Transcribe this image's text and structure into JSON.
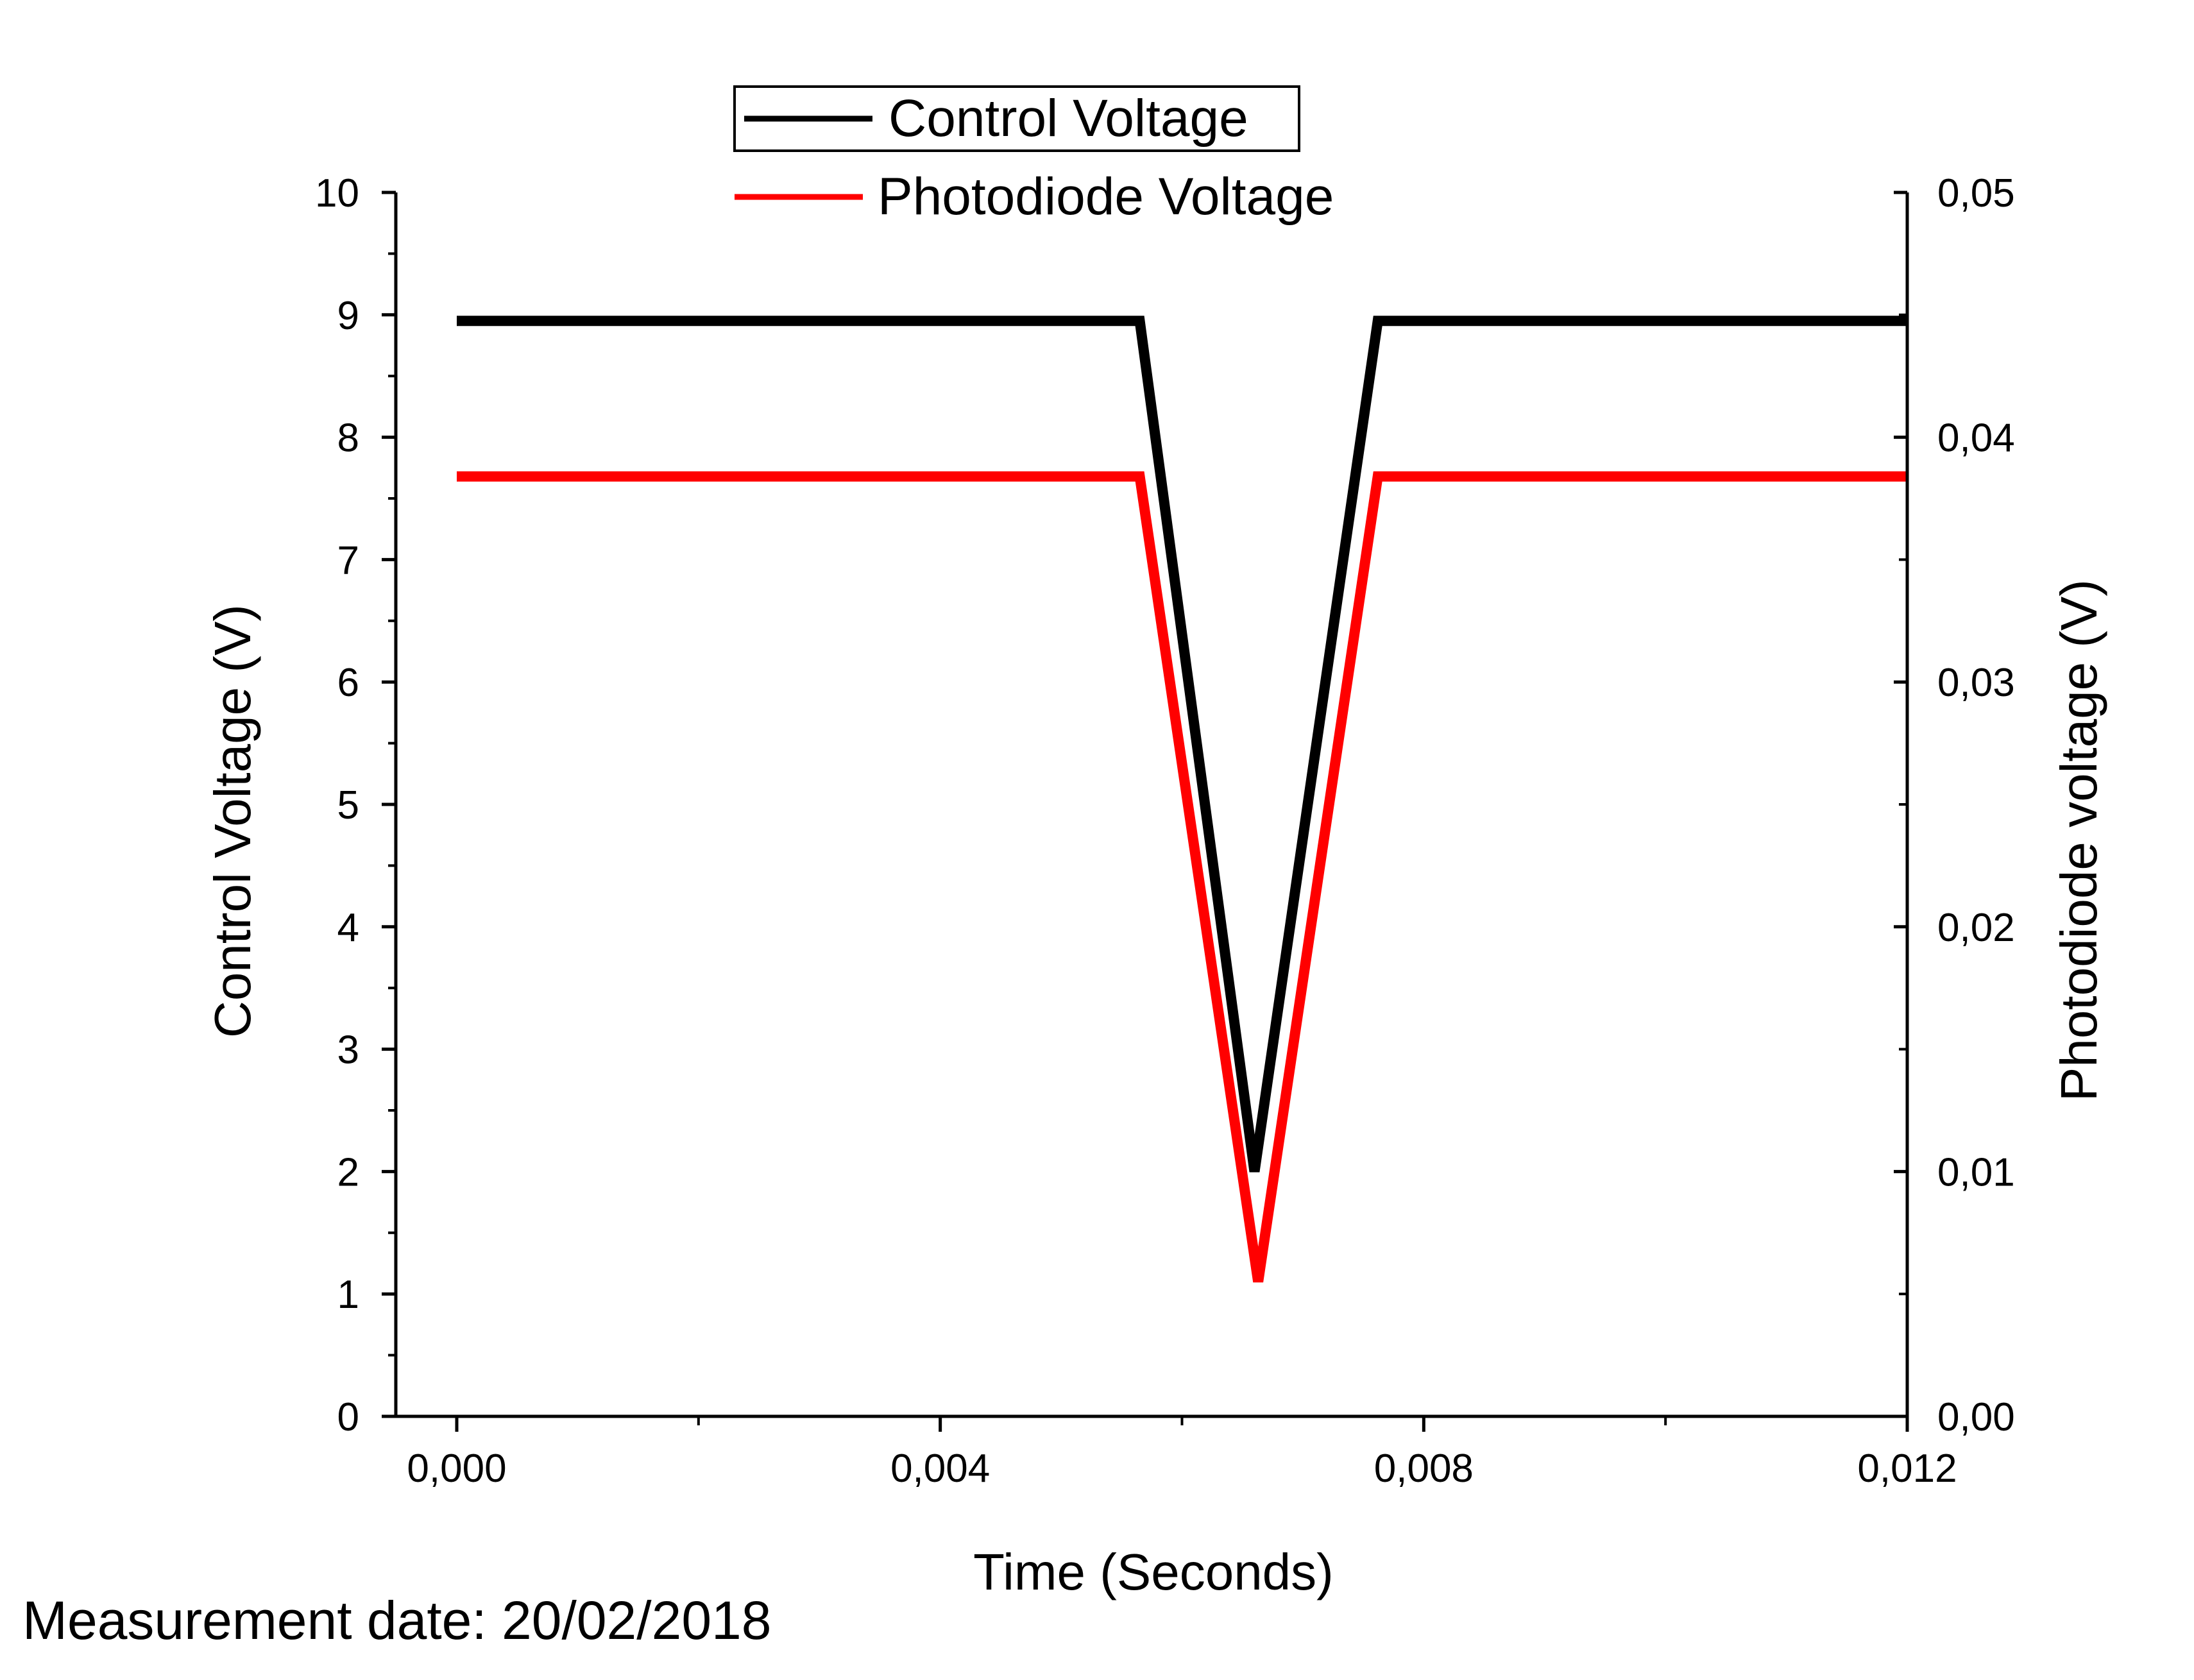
{
  "chart_data": {
    "type": "line",
    "xlabel": "Time (Seconds)",
    "ylabel_left": "Control Voltage (V)",
    "ylabel_right": "Photodiode voltage (V)",
    "xlim": [
      -0.0005,
      0.012
    ],
    "ylim_left": [
      0,
      10
    ],
    "ylim_right": [
      0,
      0.05
    ],
    "x_ticks": [
      "0,000",
      "0,004",
      "0,008",
      "0,012"
    ],
    "y_left_ticks": [
      "0",
      "1",
      "2",
      "3",
      "4",
      "5",
      "6",
      "7",
      "8",
      "9",
      "10"
    ],
    "y_right_ticks": [
      "0,00",
      "0,01",
      "0,02",
      "0,03",
      "0,04",
      "0,05"
    ],
    "grid": false,
    "legend_position": "top-center",
    "series": [
      {
        "name": "Control Voltage",
        "axis": "left",
        "color": "#000000",
        "x": [
          0.0,
          0.00565,
          0.0066,
          0.00762,
          0.012
        ],
        "y": [
          8.95,
          8.95,
          2.0,
          8.95,
          8.95
        ]
      },
      {
        "name": "Photodiode Voltage",
        "axis": "right",
        "color": "#ff0000",
        "x": [
          0.0,
          0.00565,
          0.00663,
          0.00762,
          0.012
        ],
        "y": [
          0.0384,
          0.0384,
          0.0055,
          0.0384,
          0.0384
        ]
      }
    ]
  },
  "footer": {
    "measurement_date": "Measurement date: 20/02/2018"
  }
}
